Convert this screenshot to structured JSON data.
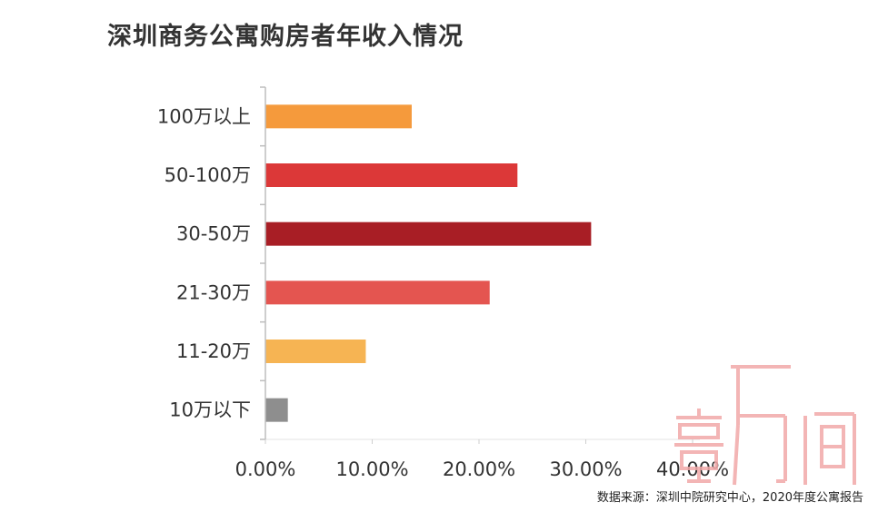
{
  "chart_data": {
    "type": "bar",
    "orientation": "horizontal",
    "title": "深圳商务公寓购房者年收入情况",
    "categories": [
      "100万以上",
      "50-100万",
      "30-50万",
      "21-30万",
      "11-20万",
      "10万以下"
    ],
    "values": [
      13.7,
      23.6,
      30.5,
      21.0,
      9.4,
      2.1
    ],
    "colors": [
      "#f59a3c",
      "#dc3838",
      "#a81e25",
      "#e45550",
      "#f6b453",
      "#8e8e8e"
    ],
    "xlim": [
      0,
      40
    ],
    "xticks": [
      0,
      10,
      20,
      30,
      40
    ],
    "xtick_labels": [
      "0.00%",
      "10.00%",
      "20.00%",
      "30.00%",
      "40.00%"
    ],
    "xlabel": "",
    "ylabel": "",
    "grid": false
  },
  "source_note": "数据来源：深圳中院研究中心，2020年度公寓报告",
  "watermark_text": "壹万间"
}
